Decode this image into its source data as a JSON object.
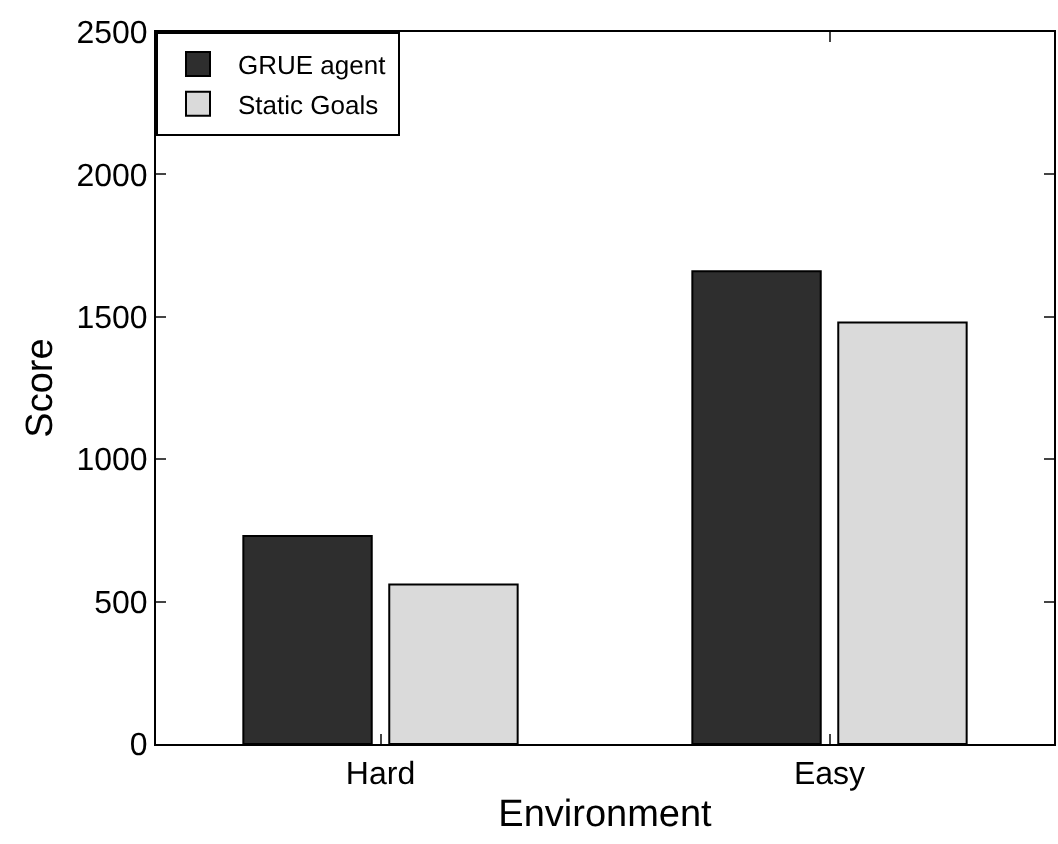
{
  "chart_data": {
    "type": "bar",
    "xlabel": "Environment",
    "ylabel": "Score",
    "categories": [
      "Hard",
      "Easy"
    ],
    "series": [
      {
        "name": "GRUE agent",
        "color": "#2e2e2e",
        "values": [
          730,
          1660
        ]
      },
      {
        "name": "Static Goals",
        "color": "#dadada",
        "values": [
          560,
          1480
        ]
      }
    ],
    "ylim": [
      0,
      2500
    ],
    "yticks": [
      0,
      500,
      1000,
      1500,
      2000,
      2500
    ],
    "grid": false,
    "legend": "top left"
  }
}
